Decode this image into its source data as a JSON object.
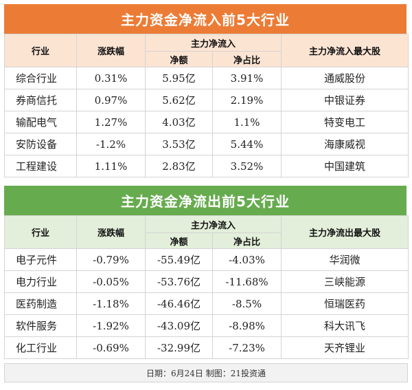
{
  "inflow": {
    "title": "主力资金净流入前5大行业",
    "headers": {
      "industry": "行业",
      "change": "涨跌幅",
      "net_inflow": "主力净流入",
      "net_amount": "净额",
      "net_ratio": "净占比",
      "top_stock": "主力净流入最大股"
    },
    "rows": [
      {
        "industry": "综合行业",
        "change": "0.31%",
        "net_amount": "5.95亿",
        "net_ratio": "3.91%",
        "top_stock": "通威股份"
      },
      {
        "industry": "券商信托",
        "change": "0.97%",
        "net_amount": "5.62亿",
        "net_ratio": "2.19%",
        "top_stock": "中银证券"
      },
      {
        "industry": "输配电气",
        "change": "1.27%",
        "net_amount": "4.03亿",
        "net_ratio": "1.1%",
        "top_stock": "特变电工"
      },
      {
        "industry": "安防设备",
        "change": "-1.2%",
        "net_amount": "3.53亿",
        "net_ratio": "5.44%",
        "top_stock": "海康威视"
      },
      {
        "industry": "工程建设",
        "change": "1.11%",
        "net_amount": "2.83亿",
        "net_ratio": "3.52%",
        "top_stock": "中国建筑"
      }
    ]
  },
  "outflow": {
    "title": "主力资金净流出前5大行业",
    "headers": {
      "industry": "行业",
      "change": "涨跌幅",
      "net_inflow": "主力净流入",
      "net_amount": "净额",
      "net_ratio": "净占比",
      "top_stock": "主力净流出最大股"
    },
    "rows": [
      {
        "industry": "电子元件",
        "change": "-0.79%",
        "net_amount": "-55.49亿",
        "net_ratio": "-4.03%",
        "top_stock": "华润微"
      },
      {
        "industry": "电力行业",
        "change": "-0.05%",
        "net_amount": "-53.76亿",
        "net_ratio": "-11.68%",
        "top_stock": "三峡能源"
      },
      {
        "industry": "医药制造",
        "change": "-1.18%",
        "net_amount": "-46.46亿",
        "net_ratio": "-8.5%",
        "top_stock": "恒瑞医药"
      },
      {
        "industry": "软件服务",
        "change": "-1.92%",
        "net_amount": "-43.09亿",
        "net_ratio": "-8.98%",
        "top_stock": "科大讯飞"
      },
      {
        "industry": "化工行业",
        "change": "-0.69%",
        "net_amount": "-32.99亿",
        "net_ratio": "-7.23%",
        "top_stock": "天齐锂业"
      }
    ]
  },
  "footer": "日期：6月24日  制图：21投资通",
  "colors": {
    "inflow_header": "#ec7c35",
    "inflow_subheader": "#fce4d3",
    "outflow_header": "#67ab4f",
    "outflow_subheader": "#e3efda"
  }
}
